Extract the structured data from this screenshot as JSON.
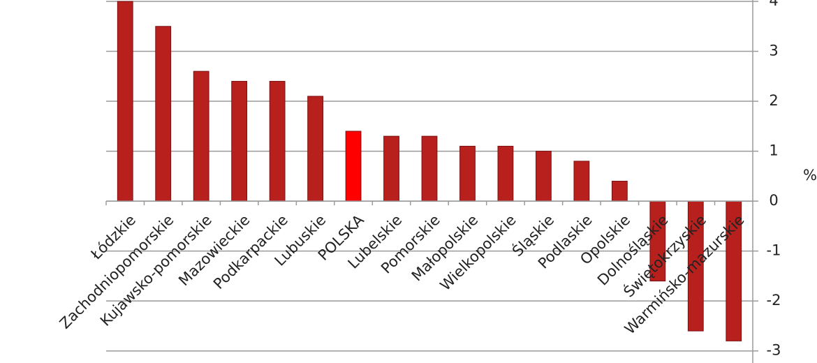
{
  "chart_data": {
    "type": "bar",
    "y_axis_label": "%",
    "categories": [
      "Łódzkie",
      "Zachodniopomorskie",
      "Kujawsko-pomorskie",
      "Mazowieckie",
      "Podkarpackie",
      "Lubuskie",
      "POLSKA",
      "Lubelskie",
      "Pomorskie",
      "Małopolskie",
      "Wielkopolskie",
      "Śląskie",
      "Podlaskie",
      "Opolskie",
      "Dolnośląskie",
      "Świętokrzyskie",
      "Warmińsko-mazurskie"
    ],
    "values": [
      4.0,
      3.5,
      2.6,
      2.4,
      2.4,
      2.1,
      1.4,
      1.3,
      1.3,
      1.1,
      1.1,
      1.0,
      0.8,
      0.4,
      -1.6,
      -2.6,
      -2.8
    ],
    "colors": [
      "#b8201e",
      "#b8201e",
      "#b8201e",
      "#b8201e",
      "#b8201e",
      "#b8201e",
      "#ff0000",
      "#b8201e",
      "#b8201e",
      "#b8201e",
      "#b8201e",
      "#b8201e",
      "#b8201e",
      "#b8201e",
      "#b8201e",
      "#b8201e",
      "#b8201e"
    ],
    "ylim": [
      -3.2,
      4
    ],
    "yticks": [
      -3,
      -2,
      -1,
      0,
      1,
      2,
      3,
      4
    ],
    "grid": true,
    "y_axis_side": "right"
  }
}
